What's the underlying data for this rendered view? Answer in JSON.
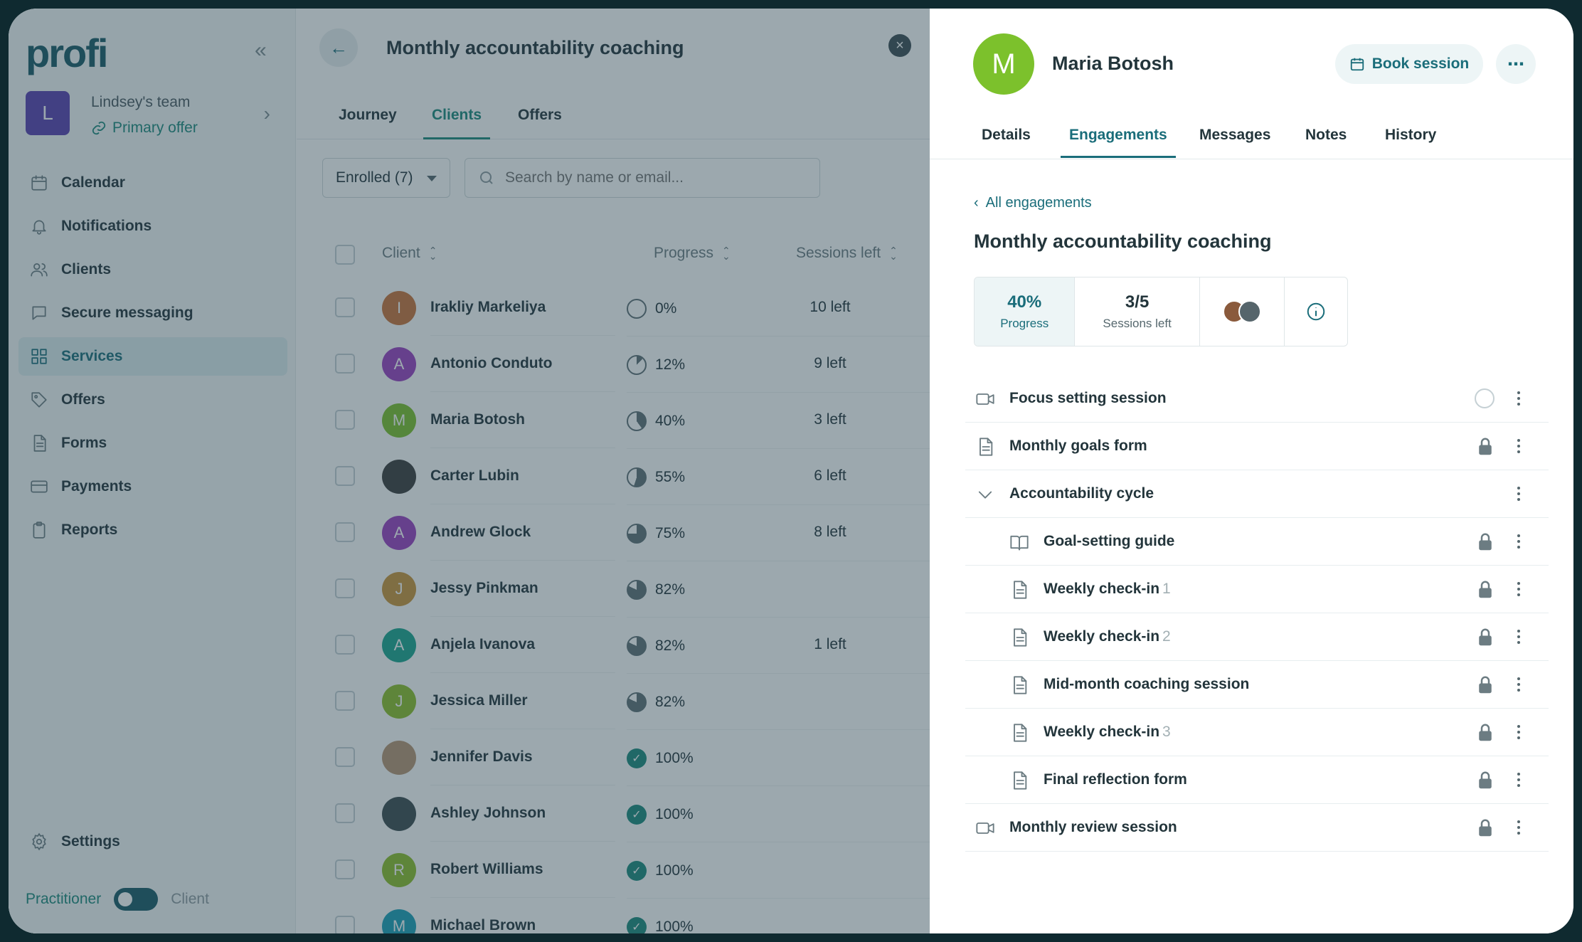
{
  "colors": {
    "brand": "#1a6d7a",
    "accent": "#1d8a7d",
    "overlay": "#28414e"
  },
  "sidebar": {
    "logo": "profi",
    "collapse_icon": "double-chevron-left-icon",
    "team": {
      "avatar": "L",
      "name": "Lindsey's team",
      "offer": "Primary offer"
    },
    "items": [
      {
        "label": "Calendar",
        "icon": "calendar-icon"
      },
      {
        "label": "Notifications",
        "icon": "bell-icon"
      },
      {
        "label": "Clients",
        "icon": "users-icon"
      },
      {
        "label": "Secure messaging",
        "icon": "chat-icon"
      },
      {
        "label": "Services",
        "icon": "grid-icon",
        "active": true
      },
      {
        "label": "Offers",
        "icon": "tag-icon"
      },
      {
        "label": "Forms",
        "icon": "document-icon"
      },
      {
        "label": "Payments",
        "icon": "card-icon"
      },
      {
        "label": "Reports",
        "icon": "clipboard-icon"
      }
    ],
    "settings": "Settings",
    "mode": {
      "practitioner": "Practitioner",
      "client": "Client"
    }
  },
  "middle": {
    "title": "Monthly accountability coaching",
    "tabs": [
      "Journey",
      "Clients",
      "Offers"
    ],
    "active_tab": "Clients",
    "filter": "Enrolled (7)",
    "search_placeholder": "Search by name or email...",
    "columns": {
      "client": "Client",
      "progress": "Progress",
      "sessions": "Sessions left"
    },
    "rows": [
      {
        "initial": "I",
        "name": "Irakliy Markeliya",
        "progress": "0%",
        "pct": 0,
        "sessions": "10 left",
        "color": "#c9743a"
      },
      {
        "initial": "A",
        "name": "Antonio Conduto",
        "progress": "12%",
        "pct": 12,
        "sessions": "9 left",
        "color": "#9b3fc1"
      },
      {
        "initial": "M",
        "name": "Maria Botosh",
        "progress": "40%",
        "pct": 40,
        "sessions": "3 left",
        "color": "#7cc12c"
      },
      {
        "initial": "",
        "name": "Carter Lubin",
        "progress": "55%",
        "pct": 55,
        "sessions": "6 left",
        "color": "#3b3b3b"
      },
      {
        "initial": "A",
        "name": "Andrew Glock",
        "progress": "75%",
        "pct": 75,
        "sessions": "8 left",
        "color": "#9b3fc1"
      },
      {
        "initial": "J",
        "name": "Jessy Pinkman",
        "progress": "82%",
        "pct": 82,
        "sessions": "",
        "color": "#c9943a"
      },
      {
        "initial": "A",
        "name": "Anjela Ivanova",
        "progress": "82%",
        "pct": 82,
        "sessions": "1 left",
        "color": "#1ba58e"
      },
      {
        "initial": "J",
        "name": "Jessica Miller",
        "progress": "82%",
        "pct": 82,
        "sessions": "",
        "color": "#8dbf2a"
      },
      {
        "initial": "",
        "name": "Jennifer Davis",
        "progress": "100%",
        "pct": 100,
        "sessions": "",
        "color": "#b89573"
      },
      {
        "initial": "",
        "name": "Ashley Johnson",
        "progress": "100%",
        "pct": 100,
        "sessions": "",
        "color": "#3c4a4f"
      },
      {
        "initial": "R",
        "name": "Robert Williams",
        "progress": "100%",
        "pct": 100,
        "sessions": "",
        "color": "#8dbf2a"
      },
      {
        "initial": "M",
        "name": "Michael Brown",
        "progress": "100%",
        "pct": 100,
        "sessions": "",
        "color": "#1aa0b8"
      }
    ]
  },
  "drawer": {
    "avatar": "M",
    "name": "Maria Botosh",
    "book_label": "Book session",
    "tabs": [
      "Details",
      "Engagements",
      "Messages",
      "Notes",
      "History"
    ],
    "active_tab": "Engagements",
    "back_link": "All engagements",
    "engagement_title": "Monthly accountability coaching",
    "stats": {
      "progress_value": "40%",
      "progress_label": "Progress",
      "sessions_value": "3/5",
      "sessions_label": "Sessions left"
    },
    "items": [
      {
        "label": "Focus setting session",
        "num": "",
        "icon": "video-icon",
        "child": false,
        "status": "open"
      },
      {
        "label": "Monthly goals form",
        "num": "",
        "icon": "document-icon",
        "child": false,
        "status": "locked"
      },
      {
        "label": "Accountability cycle",
        "num": "",
        "icon": "chevron-down-icon",
        "child": false,
        "status": "none"
      },
      {
        "label": "Goal-setting guide",
        "num": "",
        "icon": "book-icon",
        "child": true,
        "status": "locked"
      },
      {
        "label": "Weekly check-in",
        "num": "1",
        "icon": "document-icon",
        "child": true,
        "status": "locked"
      },
      {
        "label": "Weekly check-in",
        "num": "2",
        "icon": "document-icon",
        "child": true,
        "status": "locked"
      },
      {
        "label": "Mid-month coaching session",
        "num": "",
        "icon": "document-icon",
        "child": true,
        "status": "locked"
      },
      {
        "label": "Weekly check-in",
        "num": "3",
        "icon": "document-icon",
        "child": true,
        "status": "locked"
      },
      {
        "label": "Final reflection form",
        "num": "",
        "icon": "document-icon",
        "child": true,
        "status": "locked"
      },
      {
        "label": "Monthly review session",
        "num": "",
        "icon": "video-icon",
        "child": false,
        "status": "locked"
      }
    ]
  }
}
